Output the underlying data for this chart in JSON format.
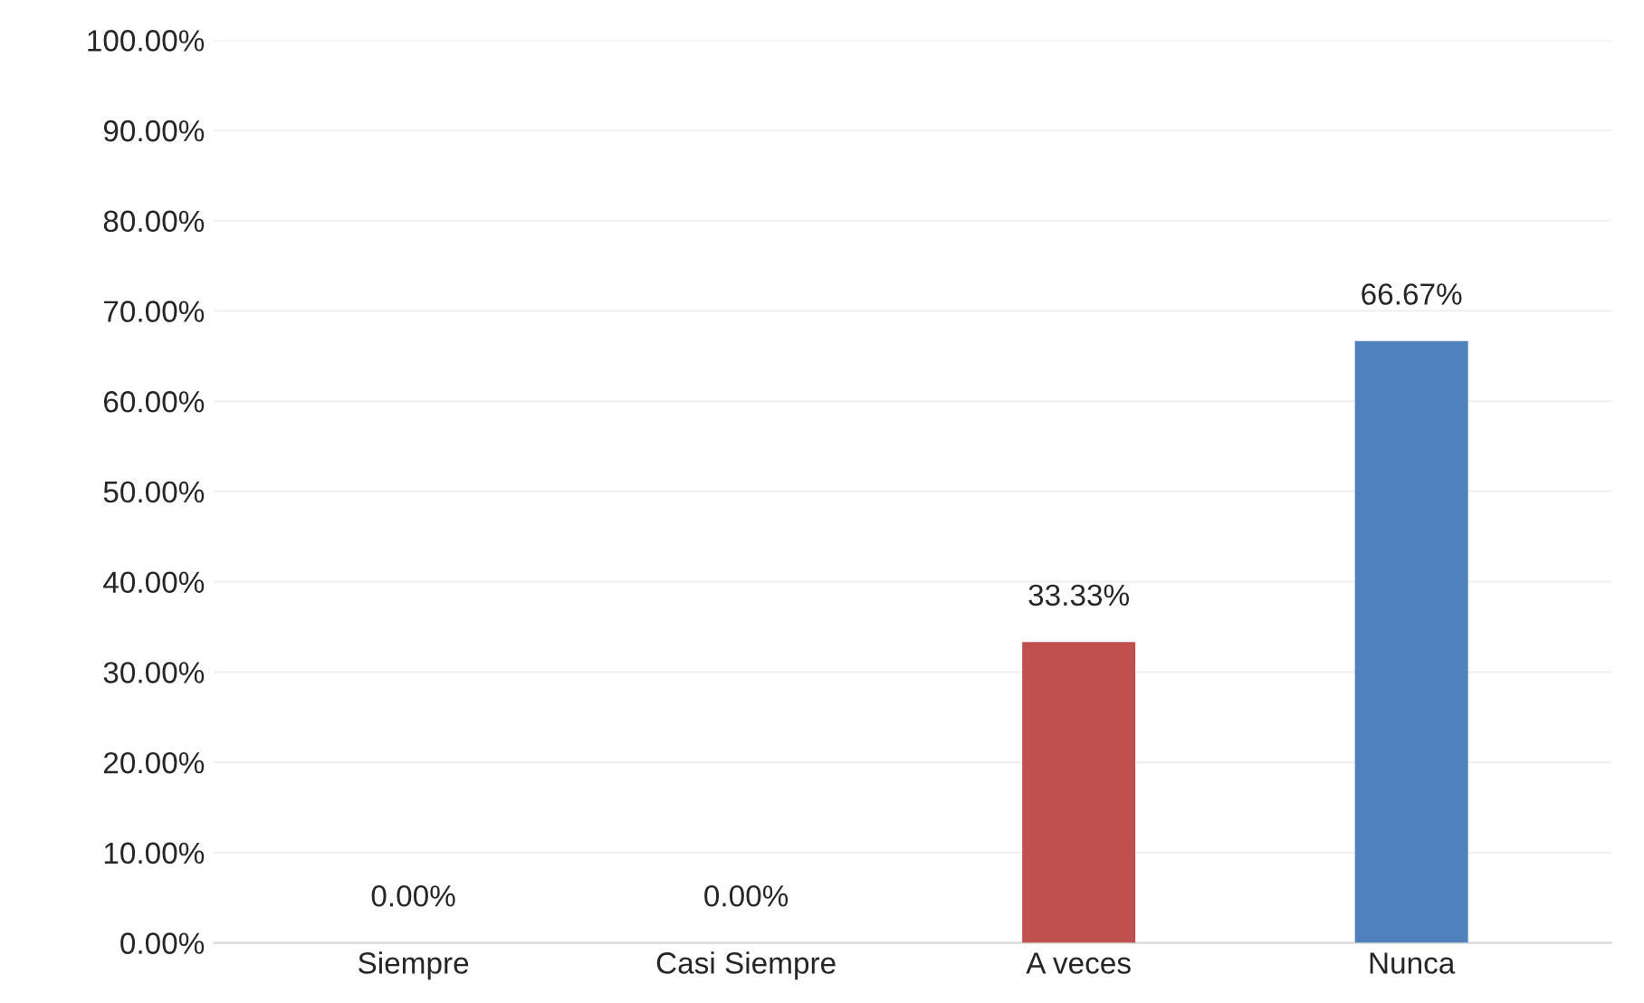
{
  "chart_data": {
    "type": "bar",
    "categories": [
      "Siempre",
      "Casi Siempre",
      "A veces",
      "Nunca"
    ],
    "values": [
      0,
      0,
      33.33,
      66.67
    ],
    "value_labels": [
      "0.00%",
      "0.00%",
      "33.33%",
      "66.67%"
    ],
    "colors": [
      "#4f81bd",
      "#c0504d",
      "#c0504d",
      "#4f81bd"
    ],
    "ylim": [
      0,
      100
    ],
    "yticks": [
      {
        "value": 0,
        "label": "0.00%"
      },
      {
        "value": 10,
        "label": "10.00%"
      },
      {
        "value": 20,
        "label": "20.00%"
      },
      {
        "value": 30,
        "label": "30.00%"
      },
      {
        "value": 40,
        "label": "40.00%"
      },
      {
        "value": 50,
        "label": "50.00%"
      },
      {
        "value": 60,
        "label": "60.00%"
      },
      {
        "value": 70,
        "label": "70.00%"
      },
      {
        "value": 80,
        "label": "80.00%"
      },
      {
        "value": 90,
        "label": "90.00%"
      },
      {
        "value": 100,
        "label": "100.00%"
      }
    ],
    "grid": "y"
  }
}
